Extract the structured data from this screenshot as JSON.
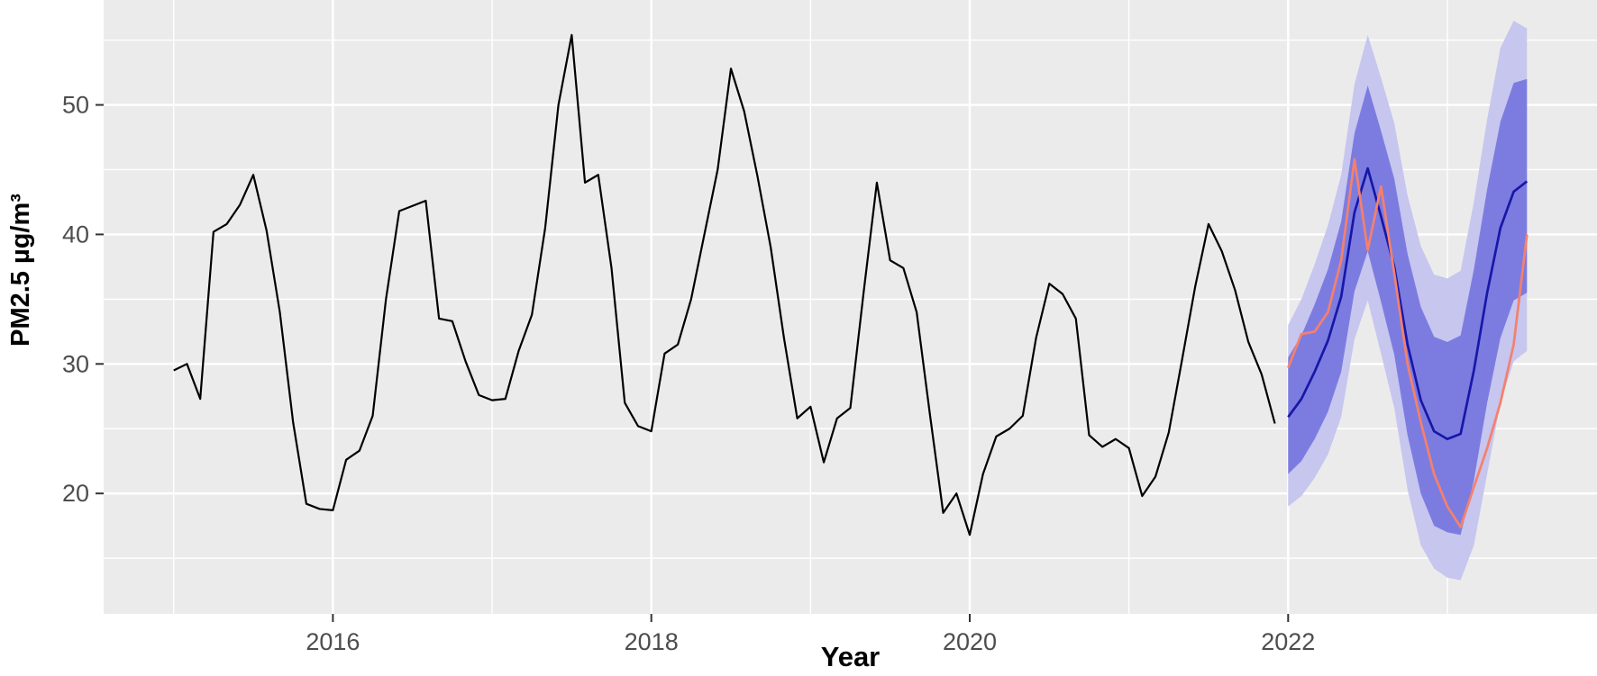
{
  "chart_data": {
    "type": "line",
    "title": "",
    "xlabel": "Year",
    "ylabel": "PM2.5 µg/m³",
    "x_ticks": [
      2016,
      2018,
      2020,
      2022
    ],
    "x_minor_gridlines": [
      2015,
      2017,
      2019,
      2021,
      2023
    ],
    "y_ticks": [
      20,
      30,
      40,
      50
    ],
    "y_minor_gridlines": [
      15,
      25,
      35,
      45,
      55
    ],
    "xlim": [
      2014.56,
      2023.94
    ],
    "ylim": [
      10.7,
      58.1
    ],
    "grid": true,
    "legend_position": "none",
    "panel_bg_color": "#ebebeb",
    "grid_color": "#ffffff",
    "tick_color": "#333333",
    "series": [
      {
        "name": "observed-pm25",
        "type": "line",
        "color": "#000000",
        "start_year": 2015,
        "frequency": "monthly",
        "values": [
          29.5,
          30.0,
          27.3,
          40.2,
          40.8,
          42.3,
          44.6,
          40.3,
          34.0,
          25.5,
          19.2,
          18.8,
          18.7,
          22.6,
          23.3,
          26.0,
          35.0,
          41.8,
          42.2,
          42.6,
          33.5,
          33.3,
          30.2,
          27.6,
          27.2,
          27.3,
          31.0,
          33.8,
          40.5,
          50.0,
          55.4,
          44.0,
          44.6,
          37.4,
          27.0,
          25.2,
          24.8,
          30.8,
          31.5,
          35.0,
          40.0,
          45.0,
          52.8,
          49.5,
          44.5,
          39.0,
          32.0,
          25.8,
          26.7,
          22.4,
          25.8,
          26.6,
          35.5,
          44.0,
          38.0,
          37.4,
          34.0,
          26.1,
          18.5,
          20.0,
          16.8,
          21.5,
          24.4,
          25.0,
          26.0,
          32.0,
          36.2,
          35.4,
          33.5,
          24.5,
          23.6,
          24.2,
          23.5,
          19.8,
          21.3,
          24.7,
          30.3,
          36.0,
          40.8,
          38.7,
          35.7,
          31.7,
          29.2,
          25.4
        ]
      },
      {
        "name": "forecast-mean",
        "type": "line",
        "color": "#1717a8",
        "start_year": 2022,
        "frequency": "monthly",
        "values": [
          25.9,
          27.3,
          29.4,
          31.8,
          35.2,
          41.7,
          45.1,
          41.4,
          37.5,
          31.5,
          27.2,
          24.8,
          24.2,
          24.6,
          29.5,
          35.5,
          40.5,
          43.3,
          44.1
        ]
      },
      {
        "name": "actual-overlay",
        "type": "line",
        "color": "#f5806c",
        "start_year": 2022,
        "frequency": "monthly",
        "values": [
          29.7,
          32.3,
          32.5,
          34.0,
          38.0,
          45.8,
          38.8,
          43.7,
          37.0,
          30.0,
          25.5,
          21.5,
          19.0,
          17.4,
          20.5,
          23.5,
          27.0,
          31.5,
          40.0
        ]
      }
    ],
    "bands": [
      {
        "name": "interval-95",
        "color": "#c6c6ef",
        "start_year": 2022,
        "frequency": "monthly",
        "lo": [
          19.0,
          19.8,
          21.2,
          23.0,
          25.9,
          31.9,
          34.9,
          30.8,
          26.6,
          20.3,
          16.0,
          14.2,
          13.5,
          13.3,
          16.0,
          21.5,
          27.0,
          30.2,
          31.0
        ],
        "hi": [
          33.0,
          35.0,
          37.7,
          40.7,
          44.6,
          51.6,
          55.4,
          52.1,
          48.6,
          43.0,
          39.1,
          36.9,
          36.6,
          37.2,
          42.5,
          48.9,
          54.4,
          56.5,
          55.9
        ]
      },
      {
        "name": "interval-80",
        "color": "#7c7ce0",
        "start_year": 2022,
        "frequency": "monthly",
        "lo": [
          21.5,
          22.5,
          24.2,
          26.3,
          29.4,
          35.6,
          38.7,
          34.8,
          30.7,
          24.5,
          20.0,
          17.5,
          17.0,
          16.8,
          21.0,
          27.0,
          32.0,
          34.9,
          35.5
        ],
        "hi": [
          30.5,
          32.2,
          34.6,
          37.3,
          41.0,
          47.8,
          51.5,
          48.0,
          44.3,
          38.5,
          34.4,
          32.1,
          31.7,
          32.2,
          37.3,
          43.5,
          48.7,
          51.7,
          52.0
        ]
      }
    ]
  }
}
